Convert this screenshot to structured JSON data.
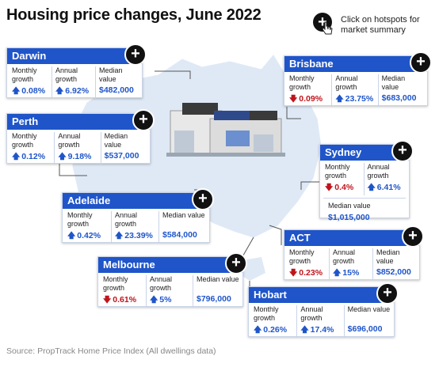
{
  "title": "Housing price changes, June 2022",
  "hint": "Click on hotspots for market summary",
  "source": "Source: PropTrack Home Price Index (All dwellings data)",
  "labels": {
    "monthly": "Monthly growth",
    "annual": "Annual growth",
    "median": "Median value",
    "median_inline": "Median value"
  },
  "plus_symbol": "+",
  "arrow_up": "🡅",
  "arrow_down": "🡇",
  "colors": {
    "header": "#1f55c9",
    "up": "#1f55c9",
    "down": "#c0141c",
    "map": "#dfe9f6"
  },
  "cards": [
    {
      "id": "darwin",
      "name": "Darwin",
      "monthly": "0.08%",
      "monthly_dir": "up",
      "annual": "6.92%",
      "annual_dir": "up",
      "median": "$482,000"
    },
    {
      "id": "perth",
      "name": "Perth",
      "monthly": "0.12%",
      "monthly_dir": "up",
      "annual": "9.18%",
      "annual_dir": "up",
      "median": "$537,000"
    },
    {
      "id": "adelaide",
      "name": "Adelaide",
      "monthly": "0.42%",
      "monthly_dir": "up",
      "annual": "23.39%",
      "annual_dir": "up",
      "median": "$584,000"
    },
    {
      "id": "melbourne",
      "name": "Melbourne",
      "monthly": "0.61%",
      "monthly_dir": "down",
      "annual": "5%",
      "annual_dir": "up",
      "median": "$796,000"
    },
    {
      "id": "brisbane",
      "name": "Brisbane",
      "monthly": "0.09%",
      "monthly_dir": "down",
      "annual": "23.75%",
      "annual_dir": "up",
      "median": "$683,000"
    },
    {
      "id": "sydney",
      "name": "Sydney",
      "monthly": "0.4%",
      "monthly_dir": "down",
      "annual": "6.41%",
      "annual_dir": "up",
      "median": "$1,015,000"
    },
    {
      "id": "act",
      "name": "ACT",
      "monthly": "0.23%",
      "monthly_dir": "down",
      "annual": "15%",
      "annual_dir": "up",
      "median": "$852,000"
    },
    {
      "id": "hobart",
      "name": "Hobart",
      "monthly": "0.26%",
      "monthly_dir": "up",
      "annual": "17.4%",
      "annual_dir": "up",
      "median": "$696,000"
    }
  ]
}
